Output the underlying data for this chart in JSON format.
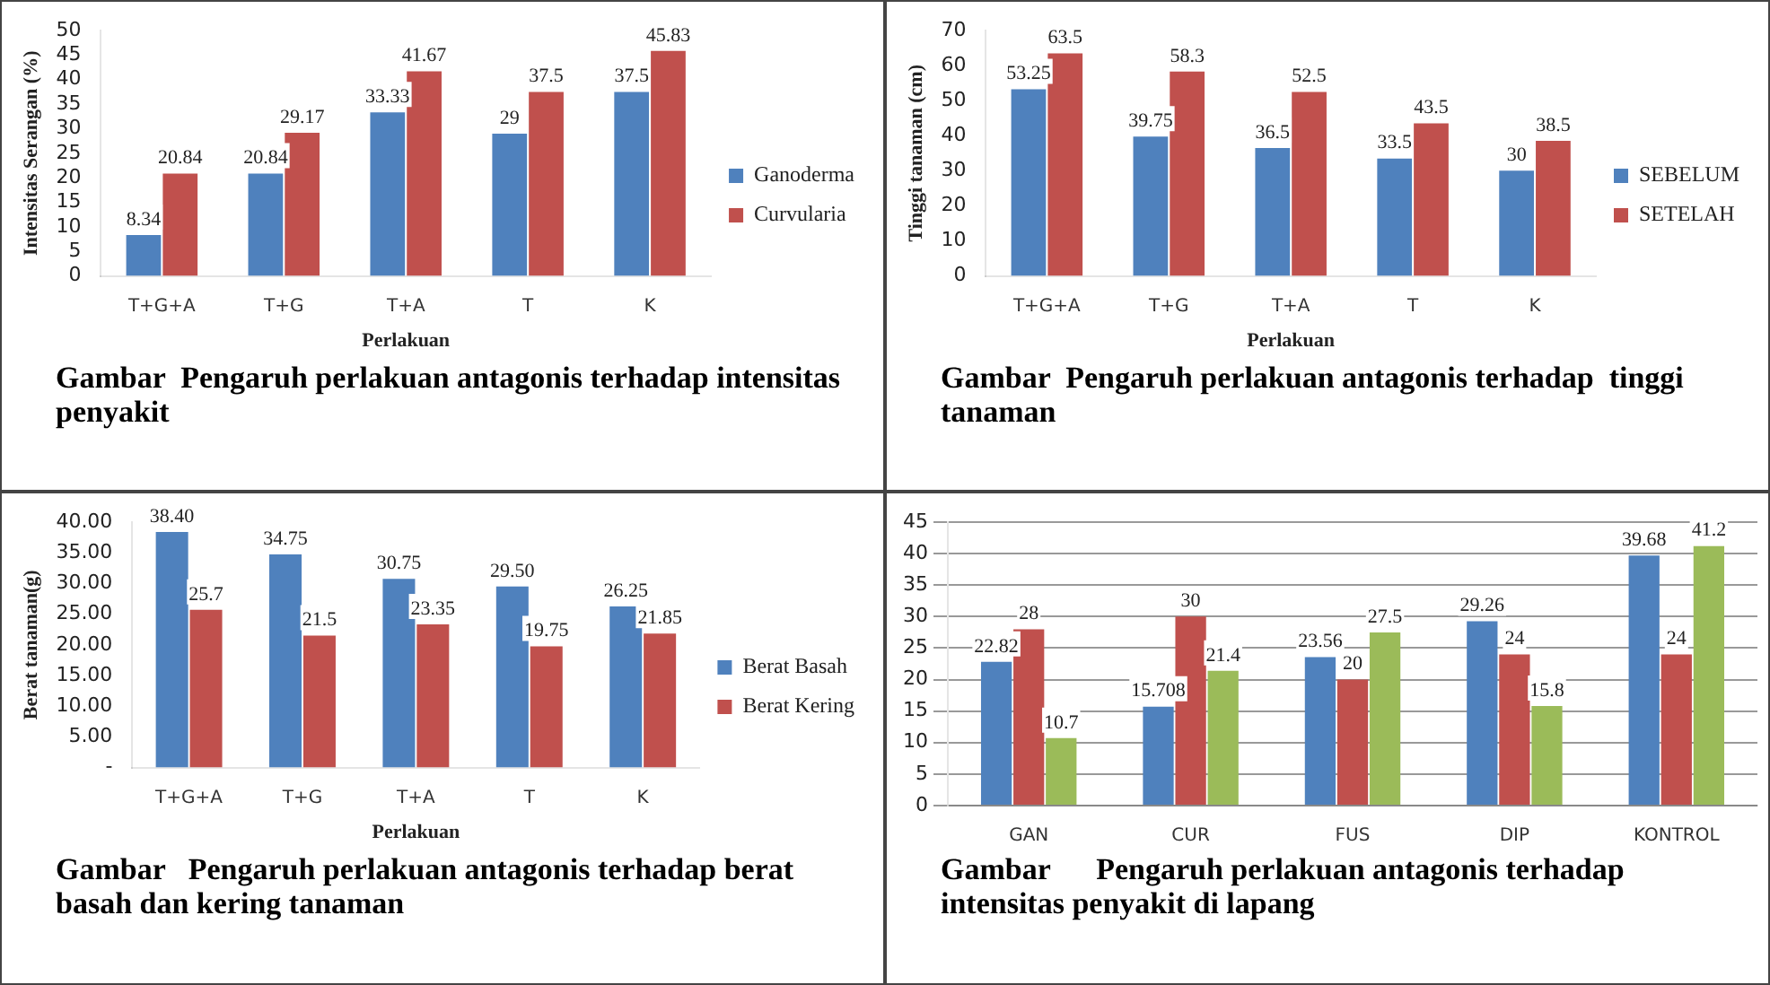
{
  "chart_data": [
    {
      "type": "bar",
      "title": "Gambar  Pengaruh perlakuan antagonis terhadap intensitas penyakit",
      "xlabel": "Perlakuan",
      "ylabel": "Intensitas Serangan (%)",
      "categories": [
        "T+G+A",
        "T+G",
        "T+A",
        "T",
        "K"
      ],
      "series": [
        {
          "name": "Ganoderma",
          "color": "#4f81bd",
          "values": [
            8.34,
            20.84,
            33.33,
            29,
            37.5
          ]
        },
        {
          "name": "Curvularia",
          "color": "#c0504d",
          "values": [
            20.84,
            29.17,
            41.67,
            37.5,
            45.83
          ]
        }
      ],
      "ylim": [
        0,
        50
      ],
      "yticks": [
        0,
        5,
        10,
        15,
        20,
        25,
        30,
        35,
        40,
        45,
        50
      ],
      "legend": "right",
      "data_labels": true
    },
    {
      "type": "bar",
      "title": "Gambar  Pengaruh perlakuan antagonis terhadap  tinggi tanaman",
      "xlabel": "Perlakuan",
      "ylabel": "Tinggi tanaman (cm)",
      "categories": [
        "T+G+A",
        "T+G",
        "T+A",
        "T",
        "K"
      ],
      "series": [
        {
          "name": "SEBELUM",
          "color": "#4f81bd",
          "values": [
            53.25,
            39.75,
            36.5,
            33.5,
            30
          ]
        },
        {
          "name": "SETELAH",
          "color": "#c0504d",
          "values": [
            63.5,
            58.3,
            52.5,
            43.5,
            38.5
          ]
        }
      ],
      "ylim": [
        0,
        70
      ],
      "yticks": [
        0,
        10,
        20,
        30,
        40,
        50,
        60,
        70
      ],
      "legend": "right",
      "data_labels": true
    },
    {
      "type": "bar",
      "title": "Gambar   Pengaruh perlakuan antagonis terhadap berat basah dan kering tanaman",
      "xlabel": "Perlakuan",
      "ylabel": "Berat tanaman(g)",
      "categories": [
        "T+G+A",
        "T+G",
        "T+A",
        "T",
        "K"
      ],
      "series": [
        {
          "name": "Berat Basah",
          "color": "#4f81bd",
          "values": [
            38.4,
            34.75,
            30.75,
            29.5,
            26.25
          ],
          "value_labels": [
            "38.40",
            "34.75",
            "30.75",
            "29.50",
            "26.25"
          ]
        },
        {
          "name": "Berat Kering",
          "color": "#c0504d",
          "values": [
            25.7,
            21.5,
            23.35,
            19.75,
            21.85
          ],
          "value_labels": [
            "25.7",
            "21.5",
            "23.35",
            "19.75",
            "21.85"
          ]
        }
      ],
      "ylim": [
        0,
        40
      ],
      "yticks": [
        {
          "value": 0,
          "label": "-"
        },
        {
          "value": 5,
          "label": "5.00"
        },
        {
          "value": 10,
          "label": "10.00"
        },
        {
          "value": 15,
          "label": "15.00"
        },
        {
          "value": 20,
          "label": "20.00"
        },
        {
          "value": 25,
          "label": "25.00"
        },
        {
          "value": 30,
          "label": "30.00"
        },
        {
          "value": 35,
          "label": "35.00"
        },
        {
          "value": 40,
          "label": "40.00"
        }
      ],
      "legend": "right"
    },
    {
      "type": "bar",
      "title": "Gambar      Pengaruh perlakuan antagonis terhadap intensitas penyakit di lapang",
      "categories": [
        "GAN",
        "CUR",
        "FUS",
        "DIP",
        "KONTROL"
      ],
      "series": [
        {
          "color": "#4f81bd",
          "values": [
            22.82,
            15.708,
            23.56,
            29.26,
            39.68
          ]
        },
        {
          "color": "#c0504d",
          "values": [
            28,
            30,
            20,
            24,
            24
          ]
        },
        {
          "color": "#9bbb59",
          "values": [
            10.7,
            21.4,
            27.5,
            15.8,
            41.2
          ]
        }
      ],
      "ylim": [
        0,
        45
      ],
      "yticks": [
        0,
        5,
        10,
        15,
        20,
        25,
        30,
        35,
        40,
        45
      ],
      "grid": "y",
      "data_labels": true
    }
  ]
}
